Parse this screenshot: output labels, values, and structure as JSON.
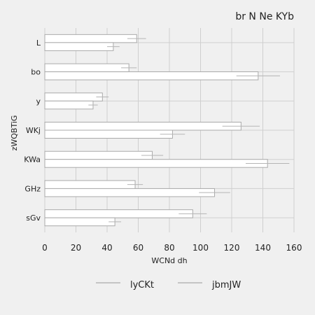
{
  "chart_data": {
    "type": "bar",
    "orientation": "horizontal",
    "title": "br N Ne KYb",
    "xlabel": "WCNd dh",
    "ylabel": "zWQBTiG",
    "xlim": [
      0,
      160
    ],
    "xticks": [
      "0",
      "20",
      "40",
      "60",
      "80",
      "100",
      "120",
      "140",
      "160"
    ],
    "categories": [
      "L",
      "bo",
      "y",
      "WKj",
      "KWa",
      "GHz",
      "sGv"
    ],
    "series": [
      {
        "name": "lyCKt",
        "values": [
          59,
          54,
          37,
          126,
          69,
          58,
          95
        ],
        "errors": [
          6,
          5,
          4,
          12,
          7,
          5,
          9
        ]
      },
      {
        "name": "jbmJW",
        "values": [
          44,
          137,
          31,
          82,
          143,
          109,
          45
        ],
        "errors": [
          4,
          14,
          3,
          8,
          14,
          10,
          4
        ]
      }
    ],
    "grid": true,
    "legend": "bottom",
    "colors": {
      "background": "#f0f0f0",
      "bar_fill": "#ffffff",
      "bar_stroke": "#aaaaaa",
      "grid": "#cfcfcf",
      "error": "#b5b5b5"
    }
  }
}
